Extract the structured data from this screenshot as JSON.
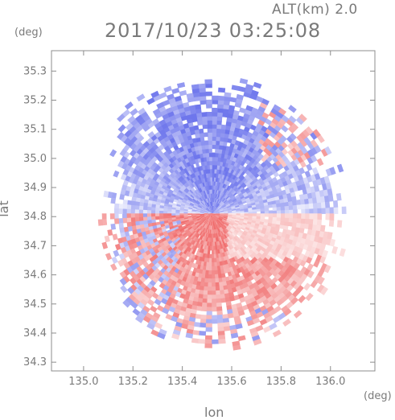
{
  "header": {
    "altitude_label": "ALT(km)  2.0",
    "timestamp": "2017/10/23 03:25:08"
  },
  "axes": {
    "y_unit": "(deg)",
    "x_unit": "(deg)",
    "xlabel": "lon",
    "ylabel": "lat"
  },
  "colors": {
    "positive": "#f08080",
    "negative": "#7f86ee",
    "frame": "#8c8c8c"
  },
  "chart_data": {
    "type": "heatmap",
    "title": "2017/10/23 03:25:08",
    "subtitle": "ALT(km)  2.0",
    "xlabel": "lon",
    "ylabel": "lat",
    "xlim": [
      134.87,
      136.18
    ],
    "ylim": [
      34.27,
      35.37
    ],
    "x_ticks": [
      {
        "value": 135.0,
        "label": "135.0"
      },
      {
        "value": 135.2,
        "label": "135.2"
      },
      {
        "value": 135.4,
        "label": "135.4"
      },
      {
        "value": 135.6,
        "label": "135.6"
      },
      {
        "value": 135.8,
        "label": "135.8"
      },
      {
        "value": 136.0,
        "label": "136.0"
      }
    ],
    "y_ticks": [
      {
        "value": 34.3,
        "label": "34.3"
      },
      {
        "value": 34.4,
        "label": "34.4"
      },
      {
        "value": 34.5,
        "label": "34.5"
      },
      {
        "value": 34.6,
        "label": "34.6"
      },
      {
        "value": 34.7,
        "label": "34.7"
      },
      {
        "value": 34.8,
        "label": "34.8"
      },
      {
        "value": 34.9,
        "label": "34.9"
      },
      {
        "value": 35.0,
        "label": "35.0"
      },
      {
        "value": 35.1,
        "label": "35.1"
      },
      {
        "value": 35.2,
        "label": "35.2"
      },
      {
        "value": 35.3,
        "label": "35.3"
      }
    ],
    "radar_center": {
      "lon": 135.52,
      "lat": 34.81
    },
    "radar_range_deg": 0.56,
    "grid": false,
    "colorscale": "diverging blue-white-red (Doppler velocity)",
    "regions": [
      {
        "name": "north",
        "lat_range": [
          34.81,
          35.37
        ],
        "sign": "negative",
        "intensity": 0.75
      },
      {
        "name": "east-central",
        "lat_range": [
          34.66,
          34.81
        ],
        "sign": "positive",
        "intensity": 0.3
      },
      {
        "name": "south-west",
        "lat_range": [
          34.27,
          34.81
        ],
        "sign": "positive",
        "intensity": 0.85
      }
    ]
  }
}
